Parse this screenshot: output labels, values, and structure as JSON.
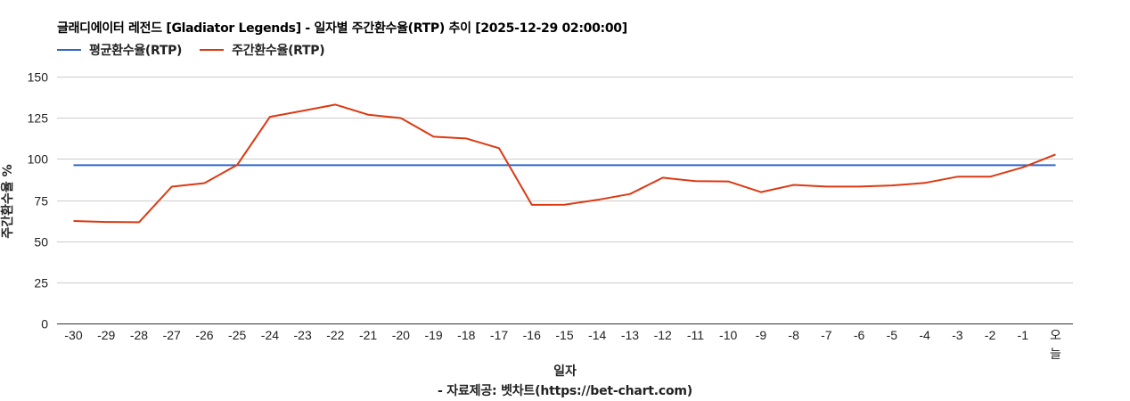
{
  "title": "글래디에이터 레전드 [Gladiator Legends] - 일자별 주간환수율(RTP) 추이 [2025-12-29 02:00:00]",
  "legend": [
    {
      "label": "평균환수율(RTP)",
      "color": "#3366cc"
    },
    {
      "label": "주간환수율(RTP)",
      "color": "#dc3912"
    }
  ],
  "axes": {
    "ylabel": "주간환수율 %",
    "xlabel": "일자",
    "yticks": [
      "0",
      "25",
      "50",
      "75",
      "100",
      "125",
      "150"
    ]
  },
  "source": "- 자료제공: 벳차트(https://bet-chart.com)",
  "chart_data": {
    "type": "line",
    "title": "글래디에이터 레전드 [Gladiator Legends] - 일자별 주간환수율(RTP) 추이 [2025-12-29 02:00:00]",
    "xlabel": "일자",
    "ylabel": "주간환수율 %",
    "ylim": [
      0,
      150
    ],
    "yticks": [
      0,
      25,
      50,
      75,
      100,
      125,
      150
    ],
    "grid": true,
    "legend_position": "top",
    "categories": [
      "-30",
      "-29",
      "-28",
      "-27",
      "-26",
      "-25",
      "-24",
      "-23",
      "-22",
      "-21",
      "-20",
      "-19",
      "-18",
      "-17",
      "-16",
      "-15",
      "-14",
      "-13",
      "-12",
      "-11",
      "-10",
      "-9",
      "-8",
      "-7",
      "-6",
      "-5",
      "-4",
      "-3",
      "-2",
      "-1",
      "오늘"
    ],
    "series": [
      {
        "name": "평균환수율(RTP)",
        "color": "#3366cc",
        "values": [
          96.2,
          96.2,
          96.2,
          96.2,
          96.2,
          96.2,
          96.2,
          96.2,
          96.2,
          96.2,
          96.2,
          96.2,
          96.2,
          96.2,
          96.2,
          96.2,
          96.2,
          96.2,
          96.2,
          96.2,
          96.2,
          96.2,
          96.2,
          96.2,
          96.2,
          96.2,
          96.2,
          96.2,
          96.2,
          96.2,
          96.2
        ]
      },
      {
        "name": "주간환수율(RTP)",
        "color": "#dc3912",
        "values": [
          62.3,
          61.7,
          61.5,
          83.1,
          85.3,
          96.4,
          125.6,
          129.2,
          133.0,
          126.9,
          124.8,
          113.5,
          112.4,
          106.5,
          72.1,
          72.2,
          75.1,
          78.7,
          88.6,
          86.5,
          86.3,
          79.8,
          84.2,
          83.2,
          83.2,
          83.9,
          85.4,
          89.2,
          89.2,
          94.9,
          102.7
        ]
      }
    ]
  }
}
